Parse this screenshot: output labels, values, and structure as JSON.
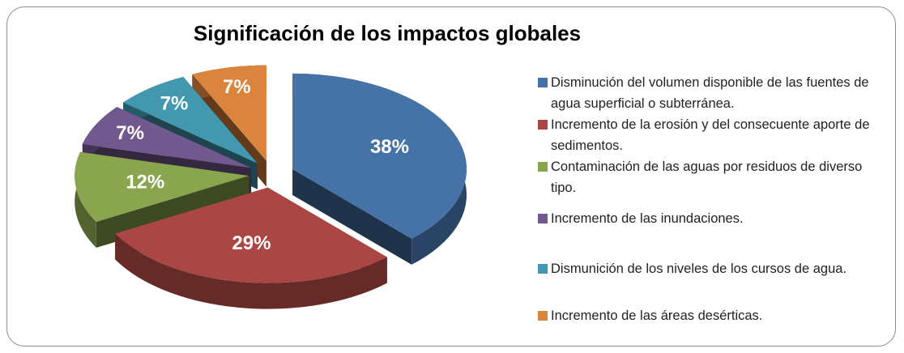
{
  "chart_data": {
    "type": "pie",
    "title": "Significación de los impactos globales",
    "categories": [
      "Disminución del volumen disponible de las fuentes de agua superficial o subterránea.",
      "Incremento de la erosión y del consecuente aporte de sedimentos.",
      "Contaminación de las aguas por residuos de diverso tipo.",
      "Incremento de las inundaciones.",
      "Dismunición de los niveles de los cursos de agua.",
      "Incremento de las áreas desérticas."
    ],
    "values": [
      38,
      29,
      12,
      7,
      7,
      7
    ],
    "value_labels": [
      "38%",
      "29%",
      "12%",
      "7%",
      "7%",
      "7%"
    ],
    "colors": [
      "#4572a7",
      "#aa4643",
      "#89a54e",
      "#71588f",
      "#4198af",
      "#db843d"
    ],
    "legend": "right"
  }
}
